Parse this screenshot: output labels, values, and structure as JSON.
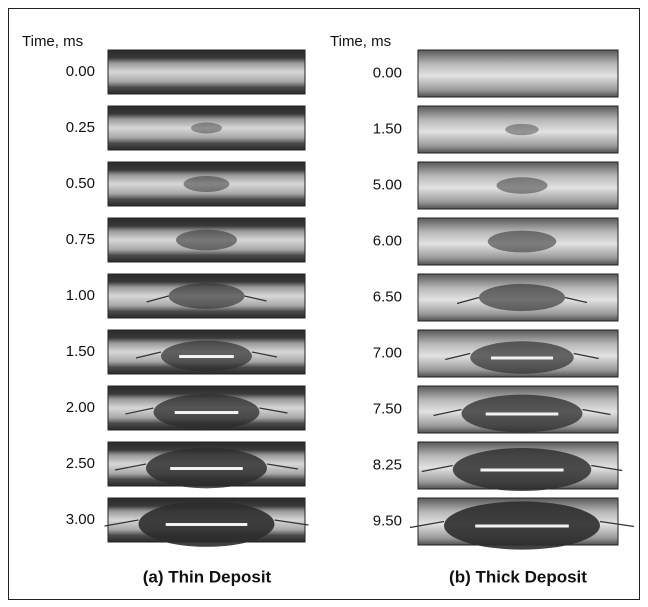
{
  "panels": [
    {
      "axis_label": "Time, ms",
      "times": [
        "0.00",
        "0.25",
        "0.50",
        "0.75",
        "1.00",
        "1.50",
        "2.00",
        "2.50",
        "3.00"
      ],
      "caption": "(a) Thin Deposit"
    },
    {
      "axis_label": "Time, ms",
      "times": [
        "0.00",
        "1.50",
        "5.00",
        "6.00",
        "6.50",
        "7.00",
        "7.50",
        "8.25",
        "9.50"
      ],
      "caption": "(b) Thick Deposit"
    }
  ]
}
